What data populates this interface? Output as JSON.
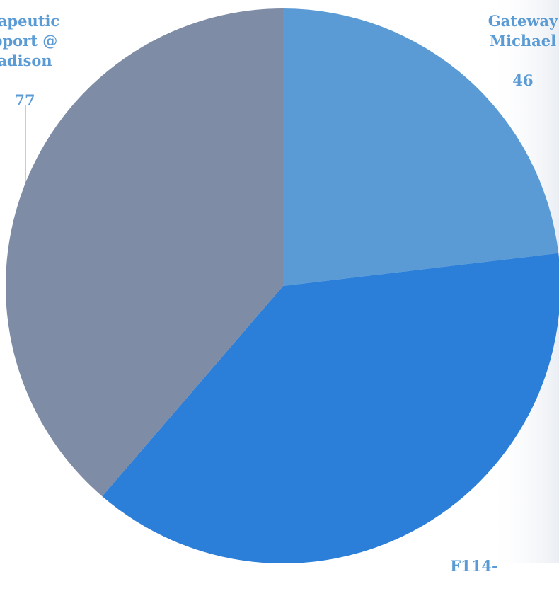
{
  "chart_data": {
    "type": "pie",
    "slices": [
      {
        "label": "Gateway\nMichael",
        "value": 46,
        "color": "#5b9bd5"
      },
      {
        "label": "F114-",
        "value": 76,
        "color": "#2b7fd9"
      },
      {
        "label": "rapeutic\npport @\nadison",
        "value": 77,
        "color": "#7f8ca6"
      }
    ],
    "legend": "none",
    "data_labels": "category-and-value"
  },
  "label_colors": {
    "default": "#5b9bd5"
  }
}
